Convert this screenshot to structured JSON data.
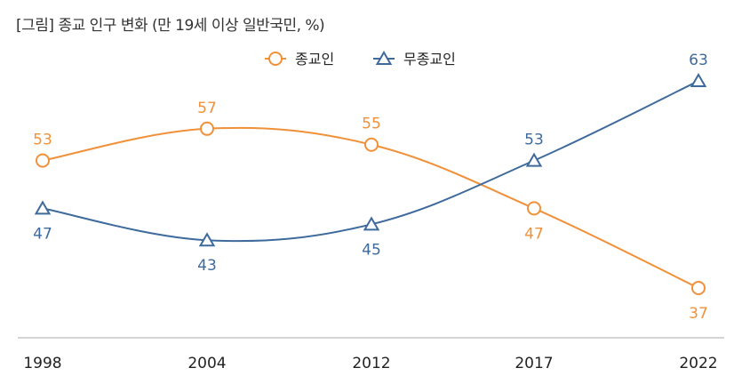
{
  "chart_data": {
    "type": "line",
    "title": "[그림] 종교 인구 변화 (만 19세 이상 일반국민, %)",
    "categories": [
      "1998",
      "2004",
      "2012",
      "2017",
      "2022"
    ],
    "series": [
      {
        "name": "종교인",
        "values": [
          53,
          57,
          55,
          47,
          37
        ],
        "color": "#F0913A",
        "marker": "circle"
      },
      {
        "name": "무종교인",
        "values": [
          47,
          43,
          45,
          53,
          63
        ],
        "color": "#3E6A9C",
        "marker": "triangle"
      }
    ],
    "legend": "top-right",
    "grid": false,
    "data_labels": true
  }
}
